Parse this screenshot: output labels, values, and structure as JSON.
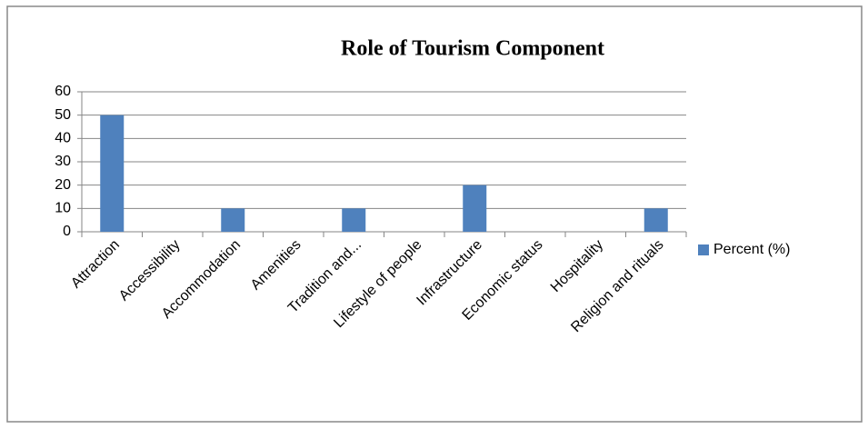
{
  "chart_data": {
    "type": "bar",
    "title": "Role of Tourism Component",
    "categories": [
      "Attraction",
      "Accessibility",
      "Accommodation",
      "Amenities",
      "Tradition and...",
      "Lifestyle of people",
      "Infrastructure",
      "Economic status",
      "Hospitality",
      "Religion and rituals"
    ],
    "series": [
      {
        "name": "Percent (%)",
        "color": "#4f81bd",
        "values": [
          50,
          0,
          10,
          0,
          10,
          0,
          20,
          0,
          0,
          10
        ]
      }
    ],
    "ylim": [
      0,
      60
    ],
    "yticks": [
      0,
      10,
      20,
      30,
      40,
      50,
      60
    ],
    "grid": true,
    "legend": "right"
  }
}
